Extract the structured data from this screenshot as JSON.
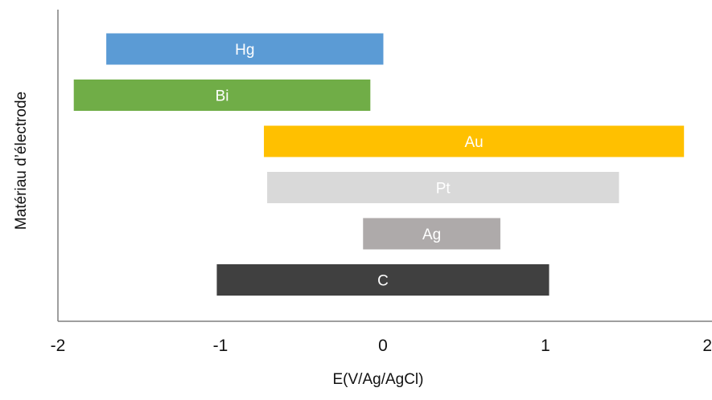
{
  "chart_data": {
    "type": "bar",
    "orientation": "horizontal-range",
    "xlabel": "E(V/Ag/AgCl)",
    "ylabel": "Matériau d’électrode",
    "xlim": [
      -2,
      2
    ],
    "xticks": [
      -2,
      -1,
      0,
      1,
      2
    ],
    "xtick_labels": [
      "-2",
      "-1",
      "0",
      "1",
      "2"
    ],
    "grid": false,
    "legend": "none",
    "bars": [
      {
        "label": "Hg",
        "start": -1.7,
        "end": 0.0,
        "color": "#5B9BD5",
        "text_color": "#ffffff"
      },
      {
        "label": "Bi",
        "start": -1.9,
        "end": -0.08,
        "color": "#70AD47",
        "text_color": "#ffffff"
      },
      {
        "label": "Au",
        "start": -0.73,
        "end": 1.85,
        "color": "#FFC000",
        "text_color": "#ffffff"
      },
      {
        "label": "Pt",
        "start": -0.71,
        "end": 1.45,
        "color": "#D9D9D9",
        "text_color": "#ffffff"
      },
      {
        "label": "Ag",
        "start": -0.12,
        "end": 0.72,
        "color": "#AEAAAA",
        "text_color": "#ffffff"
      },
      {
        "label": "C",
        "start": -1.02,
        "end": 1.02,
        "color": "#404040",
        "text_color": "#ffffff"
      }
    ]
  }
}
